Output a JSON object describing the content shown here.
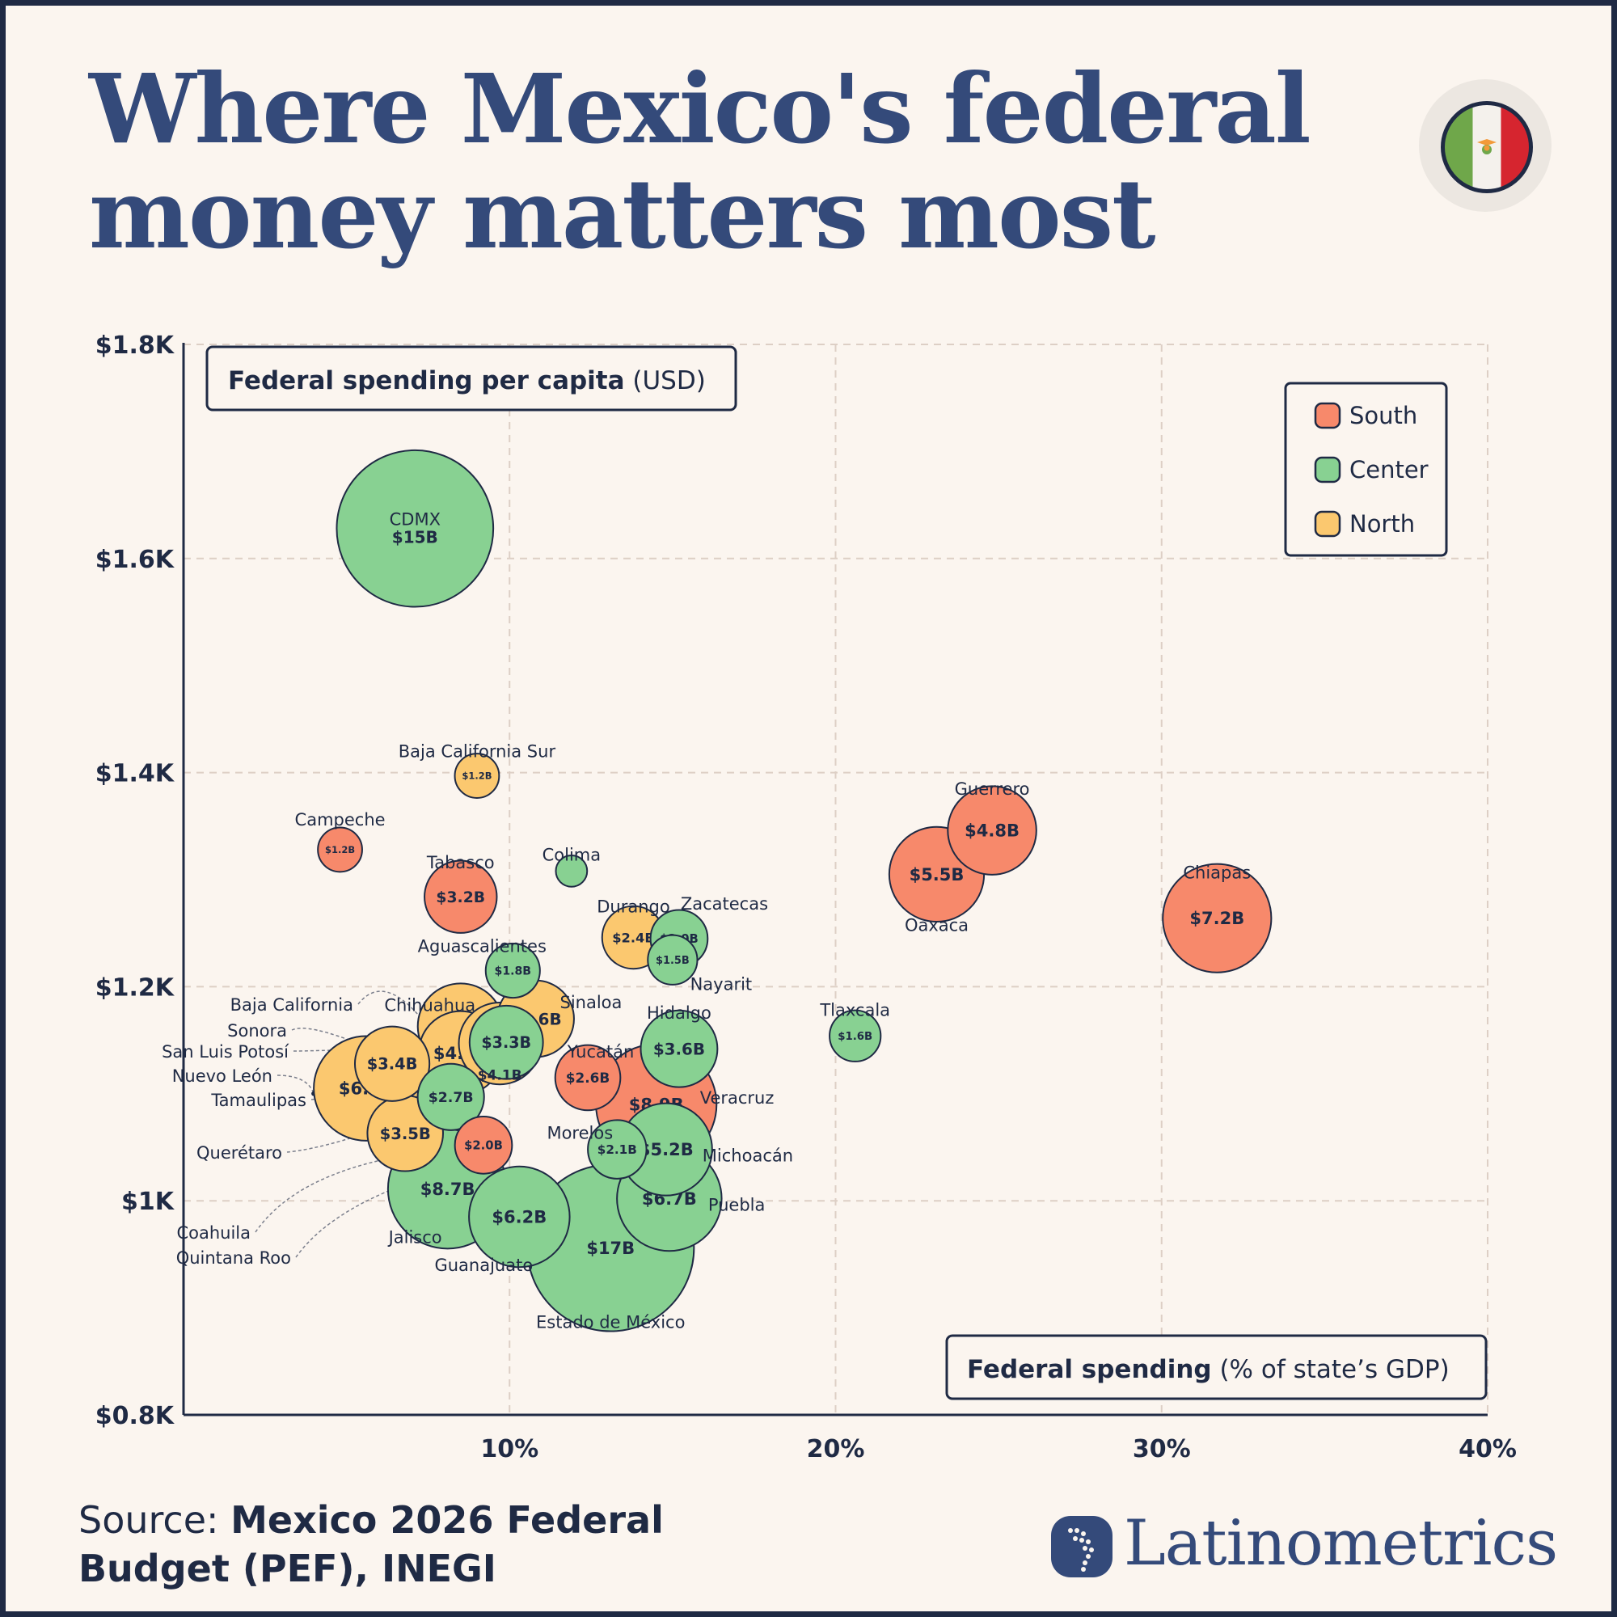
{
  "title_lines": [
    "Where Mexico's federal",
    "money matters most"
  ],
  "source": {
    "prefix": "Source: ",
    "line1": "Mexico 2026 Federal",
    "line2": "Budget (PEF), INEGI"
  },
  "brand": "Latinometrics",
  "flag_icon": "mexico-flag-icon",
  "colors": {
    "South": "#f7896b",
    "Center": "#88d192",
    "North": "#fbc86f",
    "ink": "#1f2a44",
    "brand": "#344a7a",
    "background": "#fbf5ef"
  },
  "chart_data": {
    "type": "scatter",
    "subtype": "bubble",
    "title": "Where Mexico's federal money matters most",
    "y_label_bold": "Federal spending per capita",
    "y_label_rest": " (USD)",
    "x_label_bold": "Federal spending",
    "x_label_rest": " (% of state’s GDP)",
    "xlim": [
      0,
      40
    ],
    "ylim": [
      800,
      1800
    ],
    "x_ticks": [
      10,
      20,
      30,
      40
    ],
    "x_tick_labels": [
      "10%",
      "20%",
      "30%",
      "40%"
    ],
    "y_ticks": [
      800,
      1000,
      1200,
      1400,
      1600,
      1800
    ],
    "y_tick_labels": [
      "$0.8K",
      "$1K",
      "$1.2K",
      "$1.4K",
      "$1.6K",
      "$1.8K"
    ],
    "grid": true,
    "legend": {
      "placement": "top-right",
      "entries": [
        "South",
        "Center",
        "North"
      ]
    },
    "size_unit": "total federal spending (USD billions)",
    "points": [
      {
        "name": "CDMX",
        "region": "Center",
        "x": 7.1,
        "y": 1628,
        "size": 15,
        "label": "$15B"
      },
      {
        "name": "Estado de México",
        "region": "Center",
        "x": 13.1,
        "y": 956,
        "size": 17,
        "label": "$17B"
      },
      {
        "name": "Veracruz",
        "region": "South",
        "x": 14.5,
        "y": 1090,
        "size": 8.9,
        "label": "$8.9B"
      },
      {
        "name": "Jalisco",
        "region": "Center",
        "x": 8.1,
        "y": 1011,
        "size": 8.7,
        "label": "$8.7B"
      },
      {
        "name": "Chiapas",
        "region": "South",
        "x": 31.7,
        "y": 1264,
        "size": 7.2,
        "label": "$7.2B"
      },
      {
        "name": "Puebla",
        "region": "Center",
        "x": 14.9,
        "y": 1002,
        "size": 6.7,
        "label": "$6.7B"
      },
      {
        "name": "Nuevo León",
        "region": "North",
        "x": 5.6,
        "y": 1105,
        "size": 6.7,
        "label": "$6.7B"
      },
      {
        "name": "Guanajuato",
        "region": "Center",
        "x": 10.3,
        "y": 985,
        "size": 6.2,
        "label": "$6.2B"
      },
      {
        "name": "Oaxaca",
        "region": "South",
        "x": 23.1,
        "y": 1305,
        "size": 5.5,
        "label": "$5.5B"
      },
      {
        "name": "Michoacán",
        "region": "Center",
        "x": 14.8,
        "y": 1048,
        "size": 5.2,
        "label": "$5.2B"
      },
      {
        "name": "Guerrero",
        "region": "South",
        "x": 24.8,
        "y": 1346,
        "size": 4.8,
        "label": "$4.8B"
      },
      {
        "name": "Chihuahua",
        "region": "North",
        "x": 8.5,
        "y": 1163,
        "size": 4.5,
        "label": "$4.5B"
      },
      {
        "name": "Baja California",
        "region": "North",
        "x": 8.5,
        "y": 1138,
        "size": 4.3,
        "label": "$4.3B"
      },
      {
        "name": "Tamaulipas",
        "region": "North",
        "x": 9.7,
        "y": 1147,
        "size": 4.1,
        "label": "$4.1B"
      },
      {
        "name": "Hidalgo",
        "region": "Center",
        "x": 15.2,
        "y": 1142,
        "size": 3.6,
        "label": "$3.6B"
      },
      {
        "name": "Sinaloa",
        "region": "North",
        "x": 10.8,
        "y": 1170,
        "size": 3.6,
        "label": "$3.6B"
      },
      {
        "name": "Coahuila",
        "region": "North",
        "x": 6.8,
        "y": 1063,
        "size": 3.5,
        "label": "$3.5B"
      },
      {
        "name": "Sonora",
        "region": "North",
        "x": 6.4,
        "y": 1128,
        "size": 3.4,
        "label": "$3.4B"
      },
      {
        "name": "San Luis Potosí",
        "region": "Center",
        "x": 9.9,
        "y": 1148,
        "size": 3.3,
        "label": "$3.3B"
      },
      {
        "name": "Tabasco",
        "region": "South",
        "x": 8.5,
        "y": 1284,
        "size": 3.2,
        "label": "$3.2B"
      },
      {
        "name": "Querétaro",
        "region": "Center",
        "x": 8.2,
        "y": 1097,
        "size": 2.7,
        "label": "$2.7B"
      },
      {
        "name": "Yucatán",
        "region": "South",
        "x": 12.4,
        "y": 1115,
        "size": 2.6,
        "label": "$2.6B"
      },
      {
        "name": "Durango",
        "region": "North",
        "x": 13.8,
        "y": 1246,
        "size": 2.4,
        "label": "$2.4B"
      },
      {
        "name": "Morelos",
        "region": "Center",
        "x": 13.3,
        "y": 1048,
        "size": 2.1,
        "label": "$2.1B"
      },
      {
        "name": "Quintana Roo",
        "region": "South",
        "x": 9.2,
        "y": 1052,
        "size": 2.0,
        "label": "$2.0B"
      },
      {
        "name": "Zacatecas",
        "region": "Center",
        "x": 15.2,
        "y": 1245,
        "size": 2.0,
        "label": "$2.0B"
      },
      {
        "name": "Aguascalientes",
        "region": "Center",
        "x": 10.1,
        "y": 1215,
        "size": 1.8,
        "label": "$1.8B"
      },
      {
        "name": "Tlaxcala",
        "region": "Center",
        "x": 20.6,
        "y": 1154,
        "size": 1.6,
        "label": "$1.6B"
      },
      {
        "name": "Nayarit",
        "region": "Center",
        "x": 15.0,
        "y": 1225,
        "size": 1.5,
        "label": "$1.5B"
      },
      {
        "name": "Baja California Sur",
        "region": "North",
        "x": 9.0,
        "y": 1397,
        "size": 1.2,
        "label": "$1.2B"
      },
      {
        "name": "Campeche",
        "region": "South",
        "x": 4.8,
        "y": 1328,
        "size": 1.2,
        "label": "$1.2B"
      },
      {
        "name": "Colima",
        "region": "Center",
        "x": 11.9,
        "y": 1308,
        "size": 0.6,
        "label": ""
      }
    ]
  }
}
